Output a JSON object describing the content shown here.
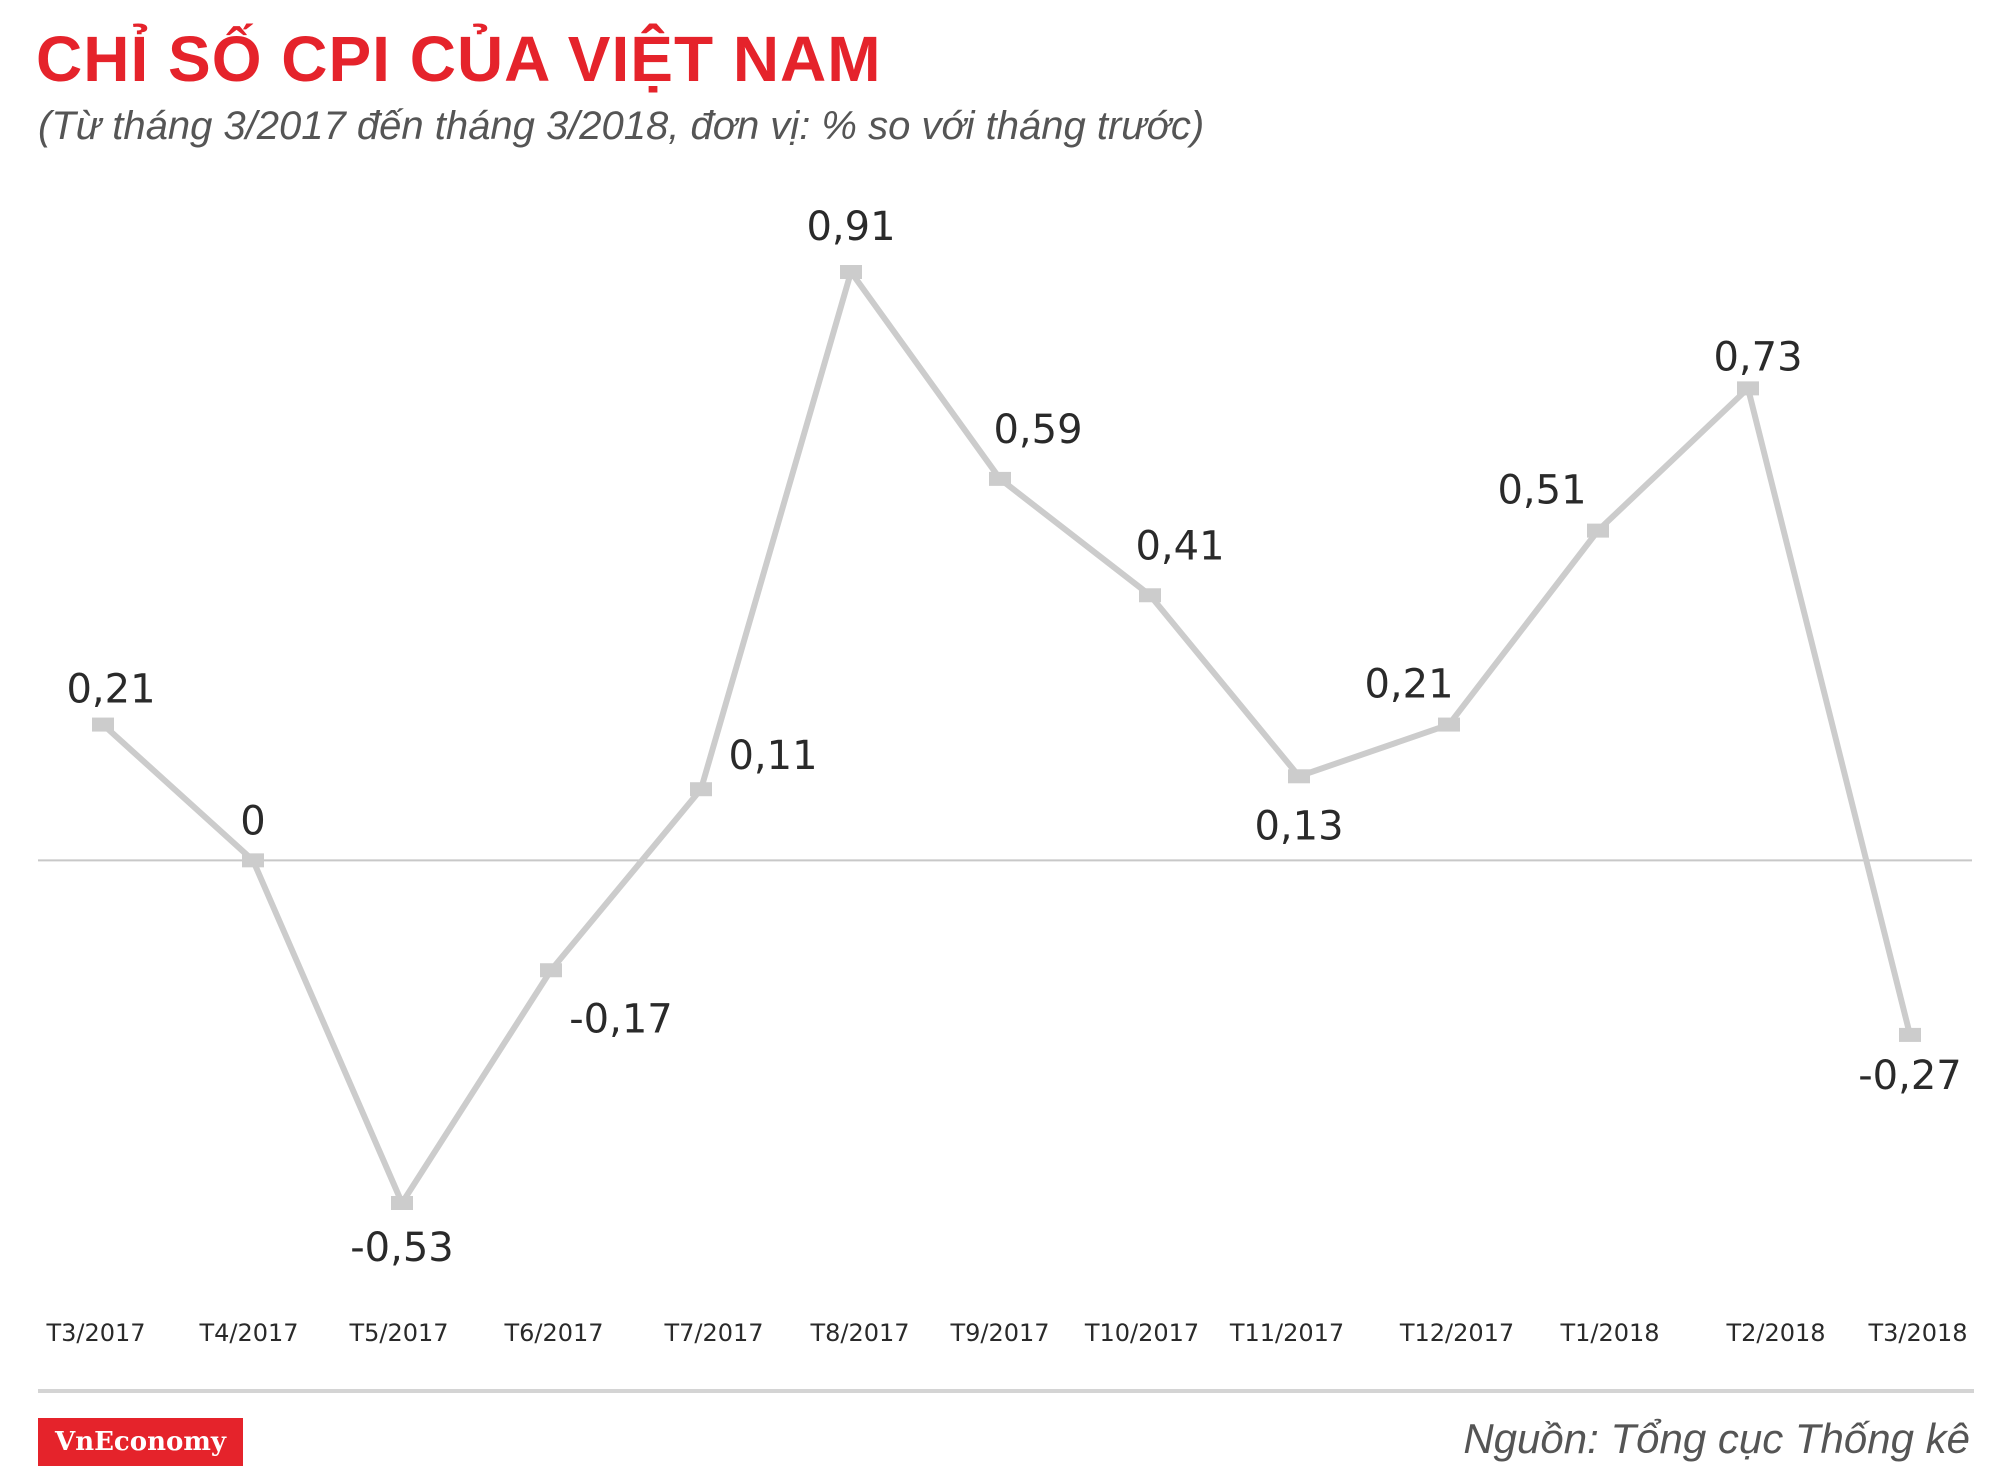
{
  "header": {
    "title": "CHỈ SỐ CPI CỦA VIỆT NAM",
    "subtitle": "(Từ tháng 3/2017 đến tháng 3/2018, đơn vị: % so với tháng trước)"
  },
  "footer": {
    "logo_text": "VnEconomy",
    "source": "Nguồn: Tổng cục Thống kê"
  },
  "colors": {
    "accent": "#e5232b",
    "line": "#cccccc",
    "zero_line": "#c8c8c8"
  },
  "chart_data": {
    "type": "line",
    "title": "CHỈ SỐ CPI CỦA VIỆT NAM",
    "xlabel": "",
    "ylabel": "",
    "categories": [
      "T3/2017",
      "T4/2017",
      "T5/2017",
      "T6/2017",
      "T7/2017",
      "T8/2017",
      "T9/2017",
      "T10/2017",
      "T11/2017",
      "T12/2017",
      "T1/2018",
      "T2/2018",
      "T3/2018"
    ],
    "series": [
      {
        "values": [
          0.21,
          0,
          -0.53,
          -0.17,
          0.11,
          0.91,
          0.59,
          0.41,
          0.13,
          0.21,
          0.51,
          0.73,
          -0.27
        ],
        "labels": [
          "0,21",
          "0",
          "-0,53",
          "-0,17",
          "0,11",
          "0,91",
          "0,59",
          "0,41",
          "0,13",
          "0,21",
          "0,51",
          "0,73",
          "-0,27"
        ]
      }
    ],
    "ylim": [
      -0.53,
      0.91
    ],
    "grid": false,
    "zero_line": true,
    "legend": "none"
  }
}
